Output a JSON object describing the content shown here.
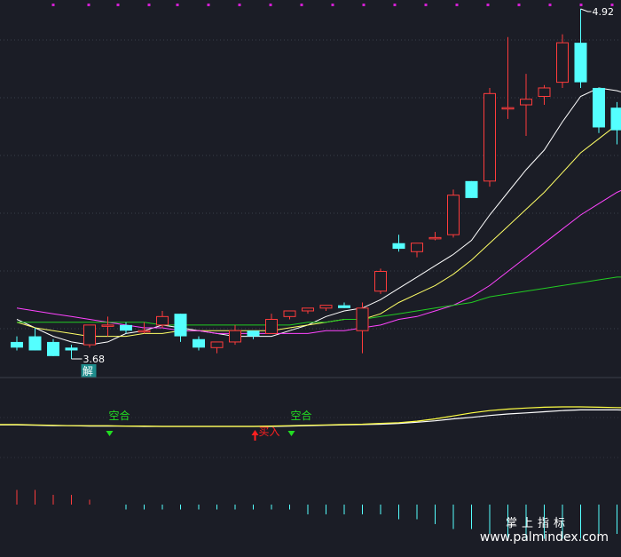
{
  "chart_data": {
    "type": "candlestick",
    "candles": [
      {
        "o": 3.74,
        "h": 3.76,
        "l": 3.71,
        "c": 3.72
      },
      {
        "o": 3.76,
        "h": 3.79,
        "l": 3.71,
        "c": 3.71
      },
      {
        "o": 3.74,
        "h": 3.75,
        "l": 3.69,
        "c": 3.69
      },
      {
        "o": 3.72,
        "h": 3.73,
        "l": 3.68,
        "c": 3.71
      },
      {
        "o": 3.73,
        "h": 3.8,
        "l": 3.72,
        "c": 3.8
      },
      {
        "o": 3.8,
        "h": 3.83,
        "l": 3.76,
        "c": 3.8
      },
      {
        "o": 3.8,
        "h": 3.81,
        "l": 3.77,
        "c": 3.78
      },
      {
        "o": 3.78,
        "h": 3.81,
        "l": 3.77,
        "c": 3.78
      },
      {
        "o": 3.8,
        "h": 3.85,
        "l": 3.79,
        "c": 3.83
      },
      {
        "o": 3.84,
        "h": 3.84,
        "l": 3.74,
        "c": 3.76
      },
      {
        "o": 3.75,
        "h": 3.76,
        "l": 3.71,
        "c": 3.72
      },
      {
        "o": 3.72,
        "h": 3.74,
        "l": 3.7,
        "c": 3.74
      },
      {
        "o": 3.74,
        "h": 3.8,
        "l": 3.73,
        "c": 3.78
      },
      {
        "o": 3.78,
        "h": 3.78,
        "l": 3.75,
        "c": 3.76
      },
      {
        "o": 3.77,
        "h": 3.84,
        "l": 3.77,
        "c": 3.82
      },
      {
        "o": 3.83,
        "h": 3.85,
        "l": 3.82,
        "c": 3.85
      },
      {
        "o": 3.85,
        "h": 3.86,
        "l": 3.84,
        "c": 3.86
      },
      {
        "o": 3.86,
        "h": 3.87,
        "l": 3.85,
        "c": 3.87
      },
      {
        "o": 3.87,
        "h": 3.88,
        "l": 3.86,
        "c": 3.86
      },
      {
        "o": 3.78,
        "h": 3.88,
        "l": 3.7,
        "c": 3.86
      },
      {
        "o": 3.92,
        "h": 4.0,
        "l": 3.91,
        "c": 3.99
      },
      {
        "o": 4.09,
        "h": 4.12,
        "l": 4.06,
        "c": 4.07
      },
      {
        "o": 4.06,
        "h": 4.09,
        "l": 4.04,
        "c": 4.09
      },
      {
        "o": 4.11,
        "h": 4.13,
        "l": 4.1,
        "c": 4.11
      },
      {
        "o": 4.12,
        "h": 4.28,
        "l": 4.11,
        "c": 4.26
      },
      {
        "o": 4.31,
        "h": 4.31,
        "l": 4.25,
        "c": 4.25
      },
      {
        "o": 4.31,
        "h": 4.64,
        "l": 4.29,
        "c": 4.62
      },
      {
        "o": 4.57,
        "h": 4.82,
        "l": 4.53,
        "c": 4.57
      },
      {
        "o": 4.58,
        "h": 4.69,
        "l": 4.47,
        "c": 4.6
      },
      {
        "o": 4.61,
        "h": 4.65,
        "l": 4.58,
        "c": 4.64
      },
      {
        "o": 4.66,
        "h": 4.83,
        "l": 4.64,
        "c": 4.8
      },
      {
        "o": 4.8,
        "h": 4.92,
        "l": 4.64,
        "c": 4.66
      },
      {
        "o": 4.64,
        "h": 4.64,
        "l": 4.48,
        "c": 4.5
      },
      {
        "o": 4.57,
        "h": 4.59,
        "l": 4.44,
        "c": 4.49
      },
      {
        "o": 4.56,
        "h": 4.57,
        "l": 4.43,
        "c": 4.49
      }
    ],
    "ma": [
      {
        "color": "#ffffff",
        "values": [
          3.82,
          3.79,
          3.76,
          3.74,
          3.73,
          3.74,
          3.77,
          3.78,
          3.8,
          3.79,
          3.78,
          3.77,
          3.76,
          3.76,
          3.76,
          3.78,
          3.8,
          3.83,
          3.85,
          3.86,
          3.89,
          3.93,
          3.97,
          4.01,
          4.05,
          4.1,
          4.19,
          4.27,
          4.35,
          4.42,
          4.52,
          4.61,
          4.64,
          4.63,
          4.61
        ]
      },
      {
        "color": "#ffff66",
        "values": [
          3.81,
          3.79,
          3.78,
          3.77,
          3.76,
          3.76,
          3.76,
          3.77,
          3.77,
          3.78,
          3.78,
          3.78,
          3.78,
          3.78,
          3.78,
          3.79,
          3.8,
          3.81,
          3.82,
          3.82,
          3.84,
          3.88,
          3.91,
          3.94,
          3.98,
          4.03,
          4.09,
          4.15,
          4.21,
          4.27,
          4.34,
          4.41,
          4.46,
          4.51,
          4.55
        ]
      },
      {
        "color": "#ff44ff",
        "values": [
          3.86,
          3.85,
          3.84,
          3.83,
          3.82,
          3.81,
          3.8,
          3.79,
          3.79,
          3.78,
          3.78,
          3.77,
          3.77,
          3.77,
          3.77,
          3.77,
          3.77,
          3.78,
          3.78,
          3.79,
          3.8,
          3.82,
          3.83,
          3.85,
          3.87,
          3.9,
          3.94,
          3.99,
          4.04,
          4.09,
          4.14,
          4.19,
          4.23,
          4.27,
          4.3
        ]
      },
      {
        "color": "#22cc22",
        "values": [
          3.81,
          3.81,
          3.81,
          3.81,
          3.81,
          3.81,
          3.81,
          3.81,
          3.8,
          3.8,
          3.8,
          3.8,
          3.8,
          3.8,
          3.8,
          3.8,
          3.81,
          3.81,
          3.82,
          3.82,
          3.83,
          3.84,
          3.85,
          3.86,
          3.87,
          3.88,
          3.9,
          3.91,
          3.92,
          3.93,
          3.94,
          3.95,
          3.96,
          3.97,
          3.97
        ]
      }
    ],
    "high_marker": {
      "index": 31,
      "label": "4.92"
    },
    "low_marker": {
      "index": 3,
      "label": "3.68"
    },
    "low_tag": "解",
    "indicator": {
      "white": [
        0.5,
        0.49,
        0.48,
        0.48,
        0.47,
        0.47,
        0.47,
        0.46,
        0.46,
        0.46,
        0.46,
        0.46,
        0.46,
        0.46,
        0.46,
        0.47,
        0.48,
        0.49,
        0.5,
        0.51,
        0.52,
        0.54,
        0.57,
        0.61,
        0.66,
        0.7,
        0.75,
        0.79,
        0.82,
        0.85,
        0.88,
        0.9,
        0.9,
        0.9,
        0.89
      ],
      "yellow": [
        0.51,
        0.5,
        0.49,
        0.48,
        0.48,
        0.48,
        0.47,
        0.47,
        0.46,
        0.46,
        0.46,
        0.46,
        0.46,
        0.46,
        0.47,
        0.48,
        0.49,
        0.5,
        0.51,
        0.52,
        0.54,
        0.56,
        0.6,
        0.66,
        0.74,
        0.82,
        0.88,
        0.92,
        0.95,
        0.97,
        0.98,
        0.98,
        0.97,
        0.96,
        0.95
      ],
      "signals": [
        {
          "index": 5,
          "label": "空合",
          "type": "empty"
        },
        {
          "index": 13,
          "label": "买入",
          "type": "buy"
        },
        {
          "index": 15,
          "label": "空合",
          "type": "empty"
        }
      ]
    },
    "histogram": [
      3,
      3,
      2,
      2,
      1,
      0,
      -1,
      -1,
      -1,
      -1,
      -1,
      -1,
      -1,
      -1,
      -1,
      -1,
      -2,
      -2,
      -2,
      -2,
      -2,
      -3,
      -3,
      -4,
      -5,
      -5,
      -6,
      -7,
      -7,
      -7,
      -7,
      -7,
      -6,
      -6,
      -5
    ]
  },
  "watermark": {
    "brand": "掌上指标",
    "url": "www.palmindex.com"
  }
}
